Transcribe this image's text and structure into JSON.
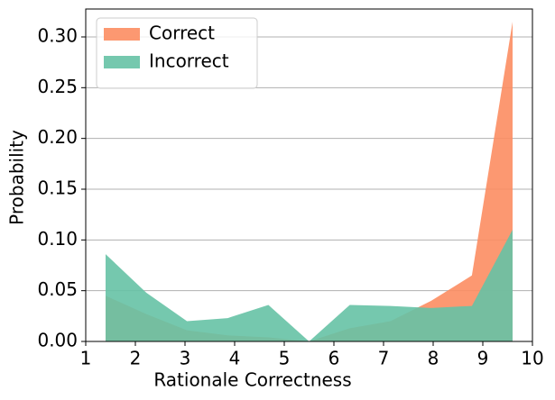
{
  "chart_data": {
    "type": "area",
    "xlabel": "Rationale Correctness",
    "ylabel": "Probability",
    "x": [
      1.4,
      2.22,
      3.04,
      3.86,
      4.68,
      5.5,
      6.32,
      7.14,
      7.96,
      8.78,
      9.6
    ],
    "series": [
      {
        "name": "Correct",
        "color": "#fc8d62",
        "values": [
          0.045,
          0.027,
          0.011,
          0.006,
          0.004,
          0.0,
          0.013,
          0.02,
          0.04,
          0.065,
          0.315
        ]
      },
      {
        "name": "Incorrect",
        "color": "#66c2a5",
        "values": [
          0.086,
          0.048,
          0.02,
          0.023,
          0.036,
          0.0,
          0.036,
          0.035,
          0.033,
          0.035,
          0.11
        ]
      }
    ],
    "xlim": [
      1,
      10
    ],
    "xticks": [
      1,
      2,
      3,
      4,
      5,
      6,
      7,
      8,
      9,
      10
    ],
    "ylim": [
      0,
      0.3275
    ],
    "yticks": [
      {
        "value": 0,
        "label": "0.00"
      },
      {
        "value": 0.05,
        "label": "0.05"
      },
      {
        "value": 0.1,
        "label": "0.10"
      },
      {
        "value": 0.15,
        "label": "0.15"
      },
      {
        "value": 0.2,
        "label": "0.20"
      },
      {
        "value": 0.25,
        "label": "0.25"
      },
      {
        "value": 0.3,
        "label": "0.30"
      }
    ],
    "grid": true,
    "legend": "upper left"
  }
}
